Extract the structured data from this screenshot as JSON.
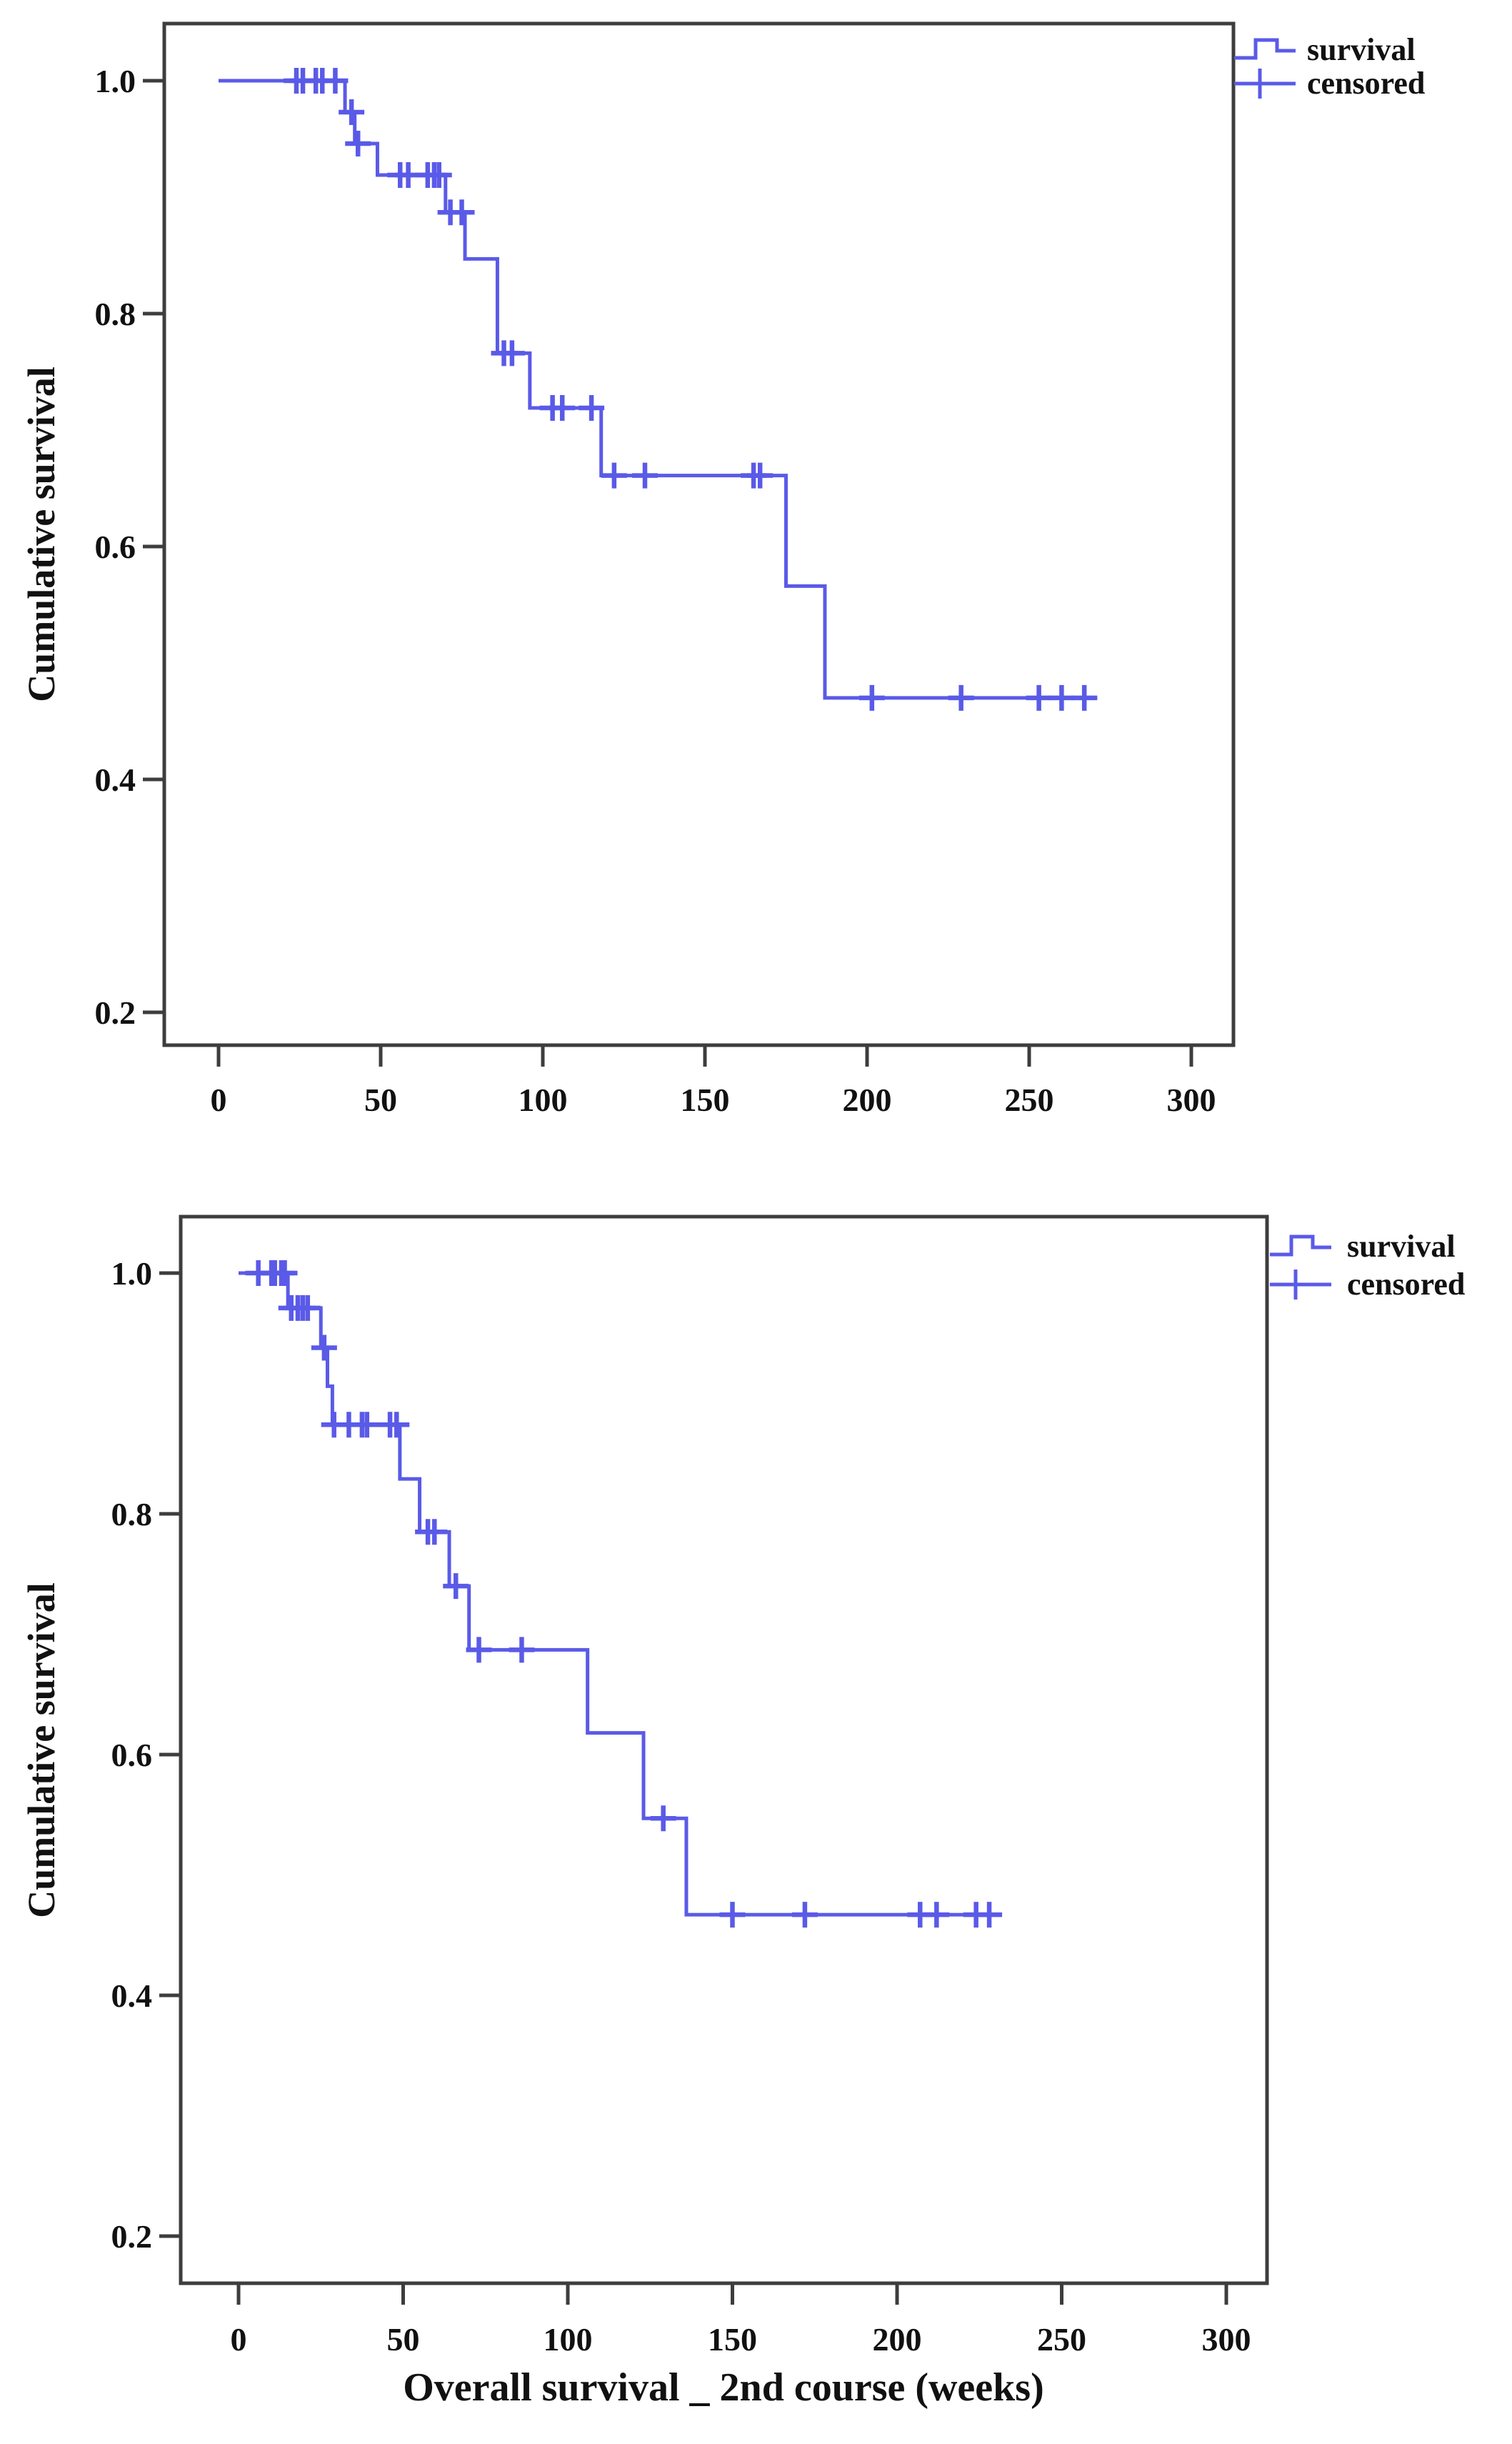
{
  "figure": {
    "background": "#ffffff",
    "colors": {
      "curve": "#5a5ae8",
      "axis": "#3d3d3d",
      "text": "#111111"
    },
    "y_axis_title": "Cumulative survival",
    "x_axis_title": "Overall survival _ 2nd course (weeks)",
    "legend": {
      "survival_label": "survival",
      "censored_label": "censored"
    }
  },
  "chart_data": [
    {
      "type": "line",
      "subtype": "kaplan-meier-step",
      "id": "overall-survival-top",
      "title": "",
      "xlabel": "",
      "ylabel": "Cumulative survival",
      "xlim": [
        0,
        300
      ],
      "ylim": [
        0.15,
        1.05
      ],
      "grid": false,
      "legend_position": "top-right-outside",
      "x_ticks": [
        0,
        50,
        100,
        150,
        200,
        250,
        300
      ],
      "y_ticks": [
        "1.0",
        "0.8",
        "0.6",
        "0.4",
        "0.2"
      ],
      "y_tick_values": [
        1.0,
        0.8,
        0.6,
        0.4,
        0.2
      ],
      "legend_entries": [
        "survival",
        "censored"
      ],
      "series": [
        {
          "name": "survival",
          "step_points": [
            [
              0,
              1.0
            ],
            [
              39,
              0.973
            ],
            [
              42,
              0.946
            ],
            [
              49,
              0.919
            ],
            [
              70,
              0.887
            ],
            [
              76,
              0.847
            ],
            [
              86,
              0.766
            ],
            [
              96,
              0.719
            ],
            [
              118,
              0.661
            ],
            [
              175,
              0.566
            ],
            [
              187,
              0.47
            ]
          ],
          "end_x": 271
        }
      ],
      "censored": [
        [
          24,
          1.0
        ],
        [
          26,
          1.0
        ],
        [
          30,
          1.0
        ],
        [
          32,
          1.0
        ],
        [
          36,
          1.0
        ],
        [
          41,
          0.973
        ],
        [
          43,
          0.946
        ],
        [
          56,
          0.919
        ],
        [
          58.5,
          0.919
        ],
        [
          64.5,
          0.919
        ],
        [
          66.5,
          0.919
        ],
        [
          68,
          0.919
        ],
        [
          71.5,
          0.887
        ],
        [
          75,
          0.887
        ],
        [
          88,
          0.766
        ],
        [
          90.5,
          0.766
        ],
        [
          103,
          0.719
        ],
        [
          106,
          0.719
        ],
        [
          115,
          0.719
        ],
        [
          122,
          0.661
        ],
        [
          131.5,
          0.661
        ],
        [
          165,
          0.661
        ],
        [
          167,
          0.661
        ],
        [
          201.5,
          0.47
        ],
        [
          229,
          0.47
        ],
        [
          253,
          0.47
        ],
        [
          260,
          0.47
        ],
        [
          267,
          0.47
        ]
      ]
    },
    {
      "type": "line",
      "subtype": "kaplan-meier-step",
      "id": "overall-survival-2nd-course-bottom",
      "title": "",
      "xlabel": "Overall survival _ 2nd course (weeks)",
      "ylabel": "Cumulative survival",
      "xlim": [
        0,
        300
      ],
      "ylim": [
        0.15,
        1.05
      ],
      "grid": false,
      "legend_position": "top-right-outside",
      "x_ticks": [
        0,
        50,
        100,
        150,
        200,
        250,
        300
      ],
      "y_ticks": [
        "1.0",
        "0.8",
        "0.6",
        "0.4",
        "0.2"
      ],
      "y_tick_values": [
        1.0,
        0.8,
        0.6,
        0.4,
        0.2
      ],
      "legend_entries": [
        "survival",
        "censored"
      ],
      "series": [
        {
          "name": "survival",
          "step_points": [
            [
              0,
              1.0
            ],
            [
              15,
              0.971
            ],
            [
              25,
              0.938
            ],
            [
              27,
              0.906
            ],
            [
              28.5,
              0.874
            ],
            [
              49,
              0.829
            ],
            [
              55,
              0.785
            ],
            [
              64,
              0.74
            ],
            [
              70,
              0.687
            ],
            [
              106,
              0.618
            ],
            [
              123,
              0.547
            ],
            [
              136,
              0.467
            ]
          ],
          "end_x": 231
        }
      ],
      "censored": [
        [
          6,
          1.0
        ],
        [
          10,
          1.0
        ],
        [
          11,
          1.0
        ],
        [
          13,
          1.0
        ],
        [
          14,
          1.0
        ],
        [
          16,
          0.971
        ],
        [
          18,
          0.971
        ],
        [
          19.5,
          0.971
        ],
        [
          21,
          0.971
        ],
        [
          26,
          0.938
        ],
        [
          29,
          0.874
        ],
        [
          33.5,
          0.874
        ],
        [
          37.5,
          0.874
        ],
        [
          39,
          0.874
        ],
        [
          46,
          0.874
        ],
        [
          48,
          0.874
        ],
        [
          57.5,
          0.785
        ],
        [
          59.5,
          0.785
        ],
        [
          66,
          0.74
        ],
        [
          73,
          0.687
        ],
        [
          86,
          0.687
        ],
        [
          129,
          0.547
        ],
        [
          150,
          0.467
        ],
        [
          172,
          0.467
        ],
        [
          207,
          0.467
        ],
        [
          212,
          0.467
        ],
        [
          224,
          0.467
        ],
        [
          228,
          0.467
        ]
      ]
    }
  ]
}
